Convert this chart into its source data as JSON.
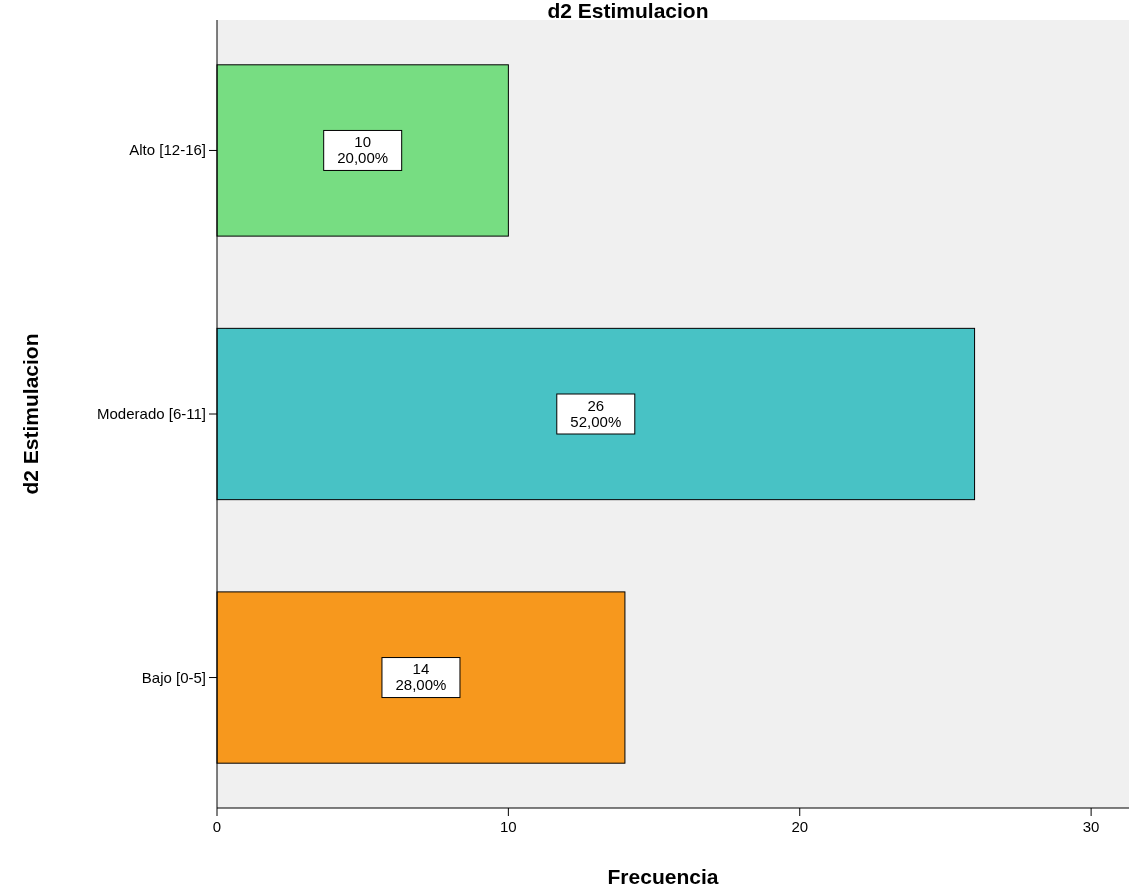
{
  "chart_data": {
    "type": "bar",
    "orientation": "horizontal",
    "title": "d2 Estimulacion",
    "xlabel": "Frecuencia",
    "ylabel": "d2 Estimulacion",
    "categories": [
      "Alto [12-16]",
      "Moderado [6-11]",
      "Bajo [0-5]"
    ],
    "values": [
      10,
      26,
      14
    ],
    "colors": [
      "#77dd82",
      "#48c2c5",
      "#f7981d"
    ],
    "value_labels": [
      "10\n20,00%",
      "26\n52,00%",
      "14\n28,00%"
    ],
    "xlim": [
      0,
      31.3
    ],
    "xticks": [
      0,
      10,
      20,
      30
    ]
  }
}
